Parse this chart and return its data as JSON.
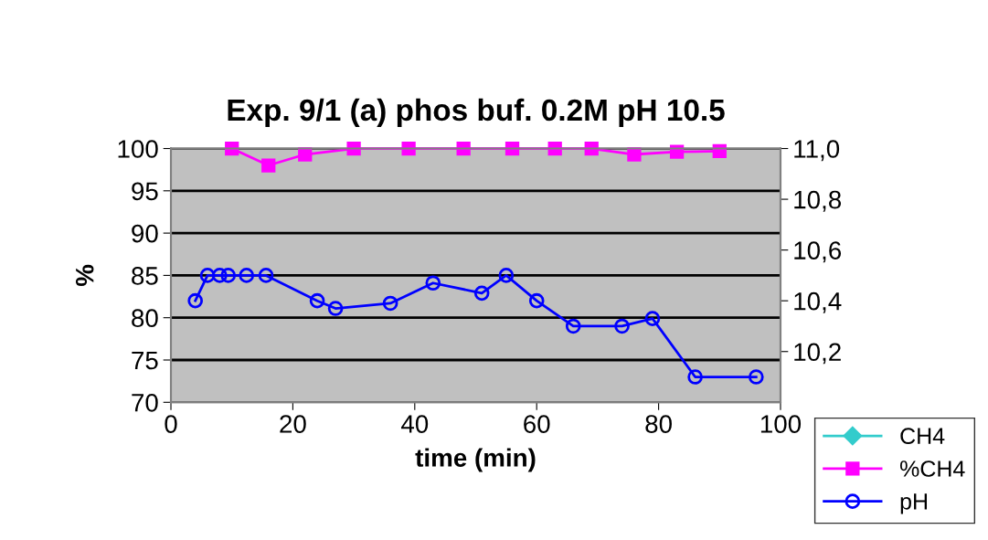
{
  "chart_data": {
    "type": "line",
    "title": "Exp. 9/1 (a) phos buf. 0.2M pH 10.5",
    "xlabel": "time (min)",
    "ylabel": "%",
    "xlim": [
      0,
      100
    ],
    "xticks": [
      0,
      20,
      40,
      60,
      80,
      100
    ],
    "ylim": [
      70,
      100
    ],
    "yticks": [
      70,
      75,
      80,
      85,
      90,
      95,
      100
    ],
    "y2lim": [
      10.0,
      11.0
    ],
    "y2ticks": [
      {
        "value": 10.2,
        "label": "10,2"
      },
      {
        "value": 10.4,
        "label": "10,4"
      },
      {
        "value": 10.6,
        "label": "10,6"
      },
      {
        "value": 10.8,
        "label": "10,8"
      },
      {
        "value": 11.0,
        "label": "11,0"
      }
    ],
    "grid": "y",
    "legend": "bottom right",
    "series": [
      {
        "name": "CH4",
        "color": "#33cccc",
        "marker": "diamond"
      },
      {
        "name": "%CH4",
        "color": "#ff00ff",
        "marker": "square",
        "x": [
          10,
          16,
          22,
          30,
          39,
          48,
          56,
          63,
          69,
          76,
          83,
          90
        ],
        "values": [
          100,
          98.0,
          99.3,
          100,
          100,
          100,
          100,
          100,
          100,
          99.3,
          99.6,
          99.7
        ]
      },
      {
        "name": "pH",
        "color": "#0000ff",
        "marker": "circle",
        "axis": "y2",
        "x": [
          4,
          6,
          8,
          9.4,
          12.4,
          15.6,
          24,
          27,
          36,
          43,
          51,
          55,
          60,
          66,
          74,
          79,
          86,
          96
        ],
        "values": [
          10.4,
          10.5,
          10.5,
          10.5,
          10.5,
          10.5,
          10.4,
          10.37,
          10.39,
          10.47,
          10.43,
          10.5,
          10.4,
          10.3,
          10.3,
          10.33,
          10.1,
          10.1
        ]
      }
    ]
  }
}
